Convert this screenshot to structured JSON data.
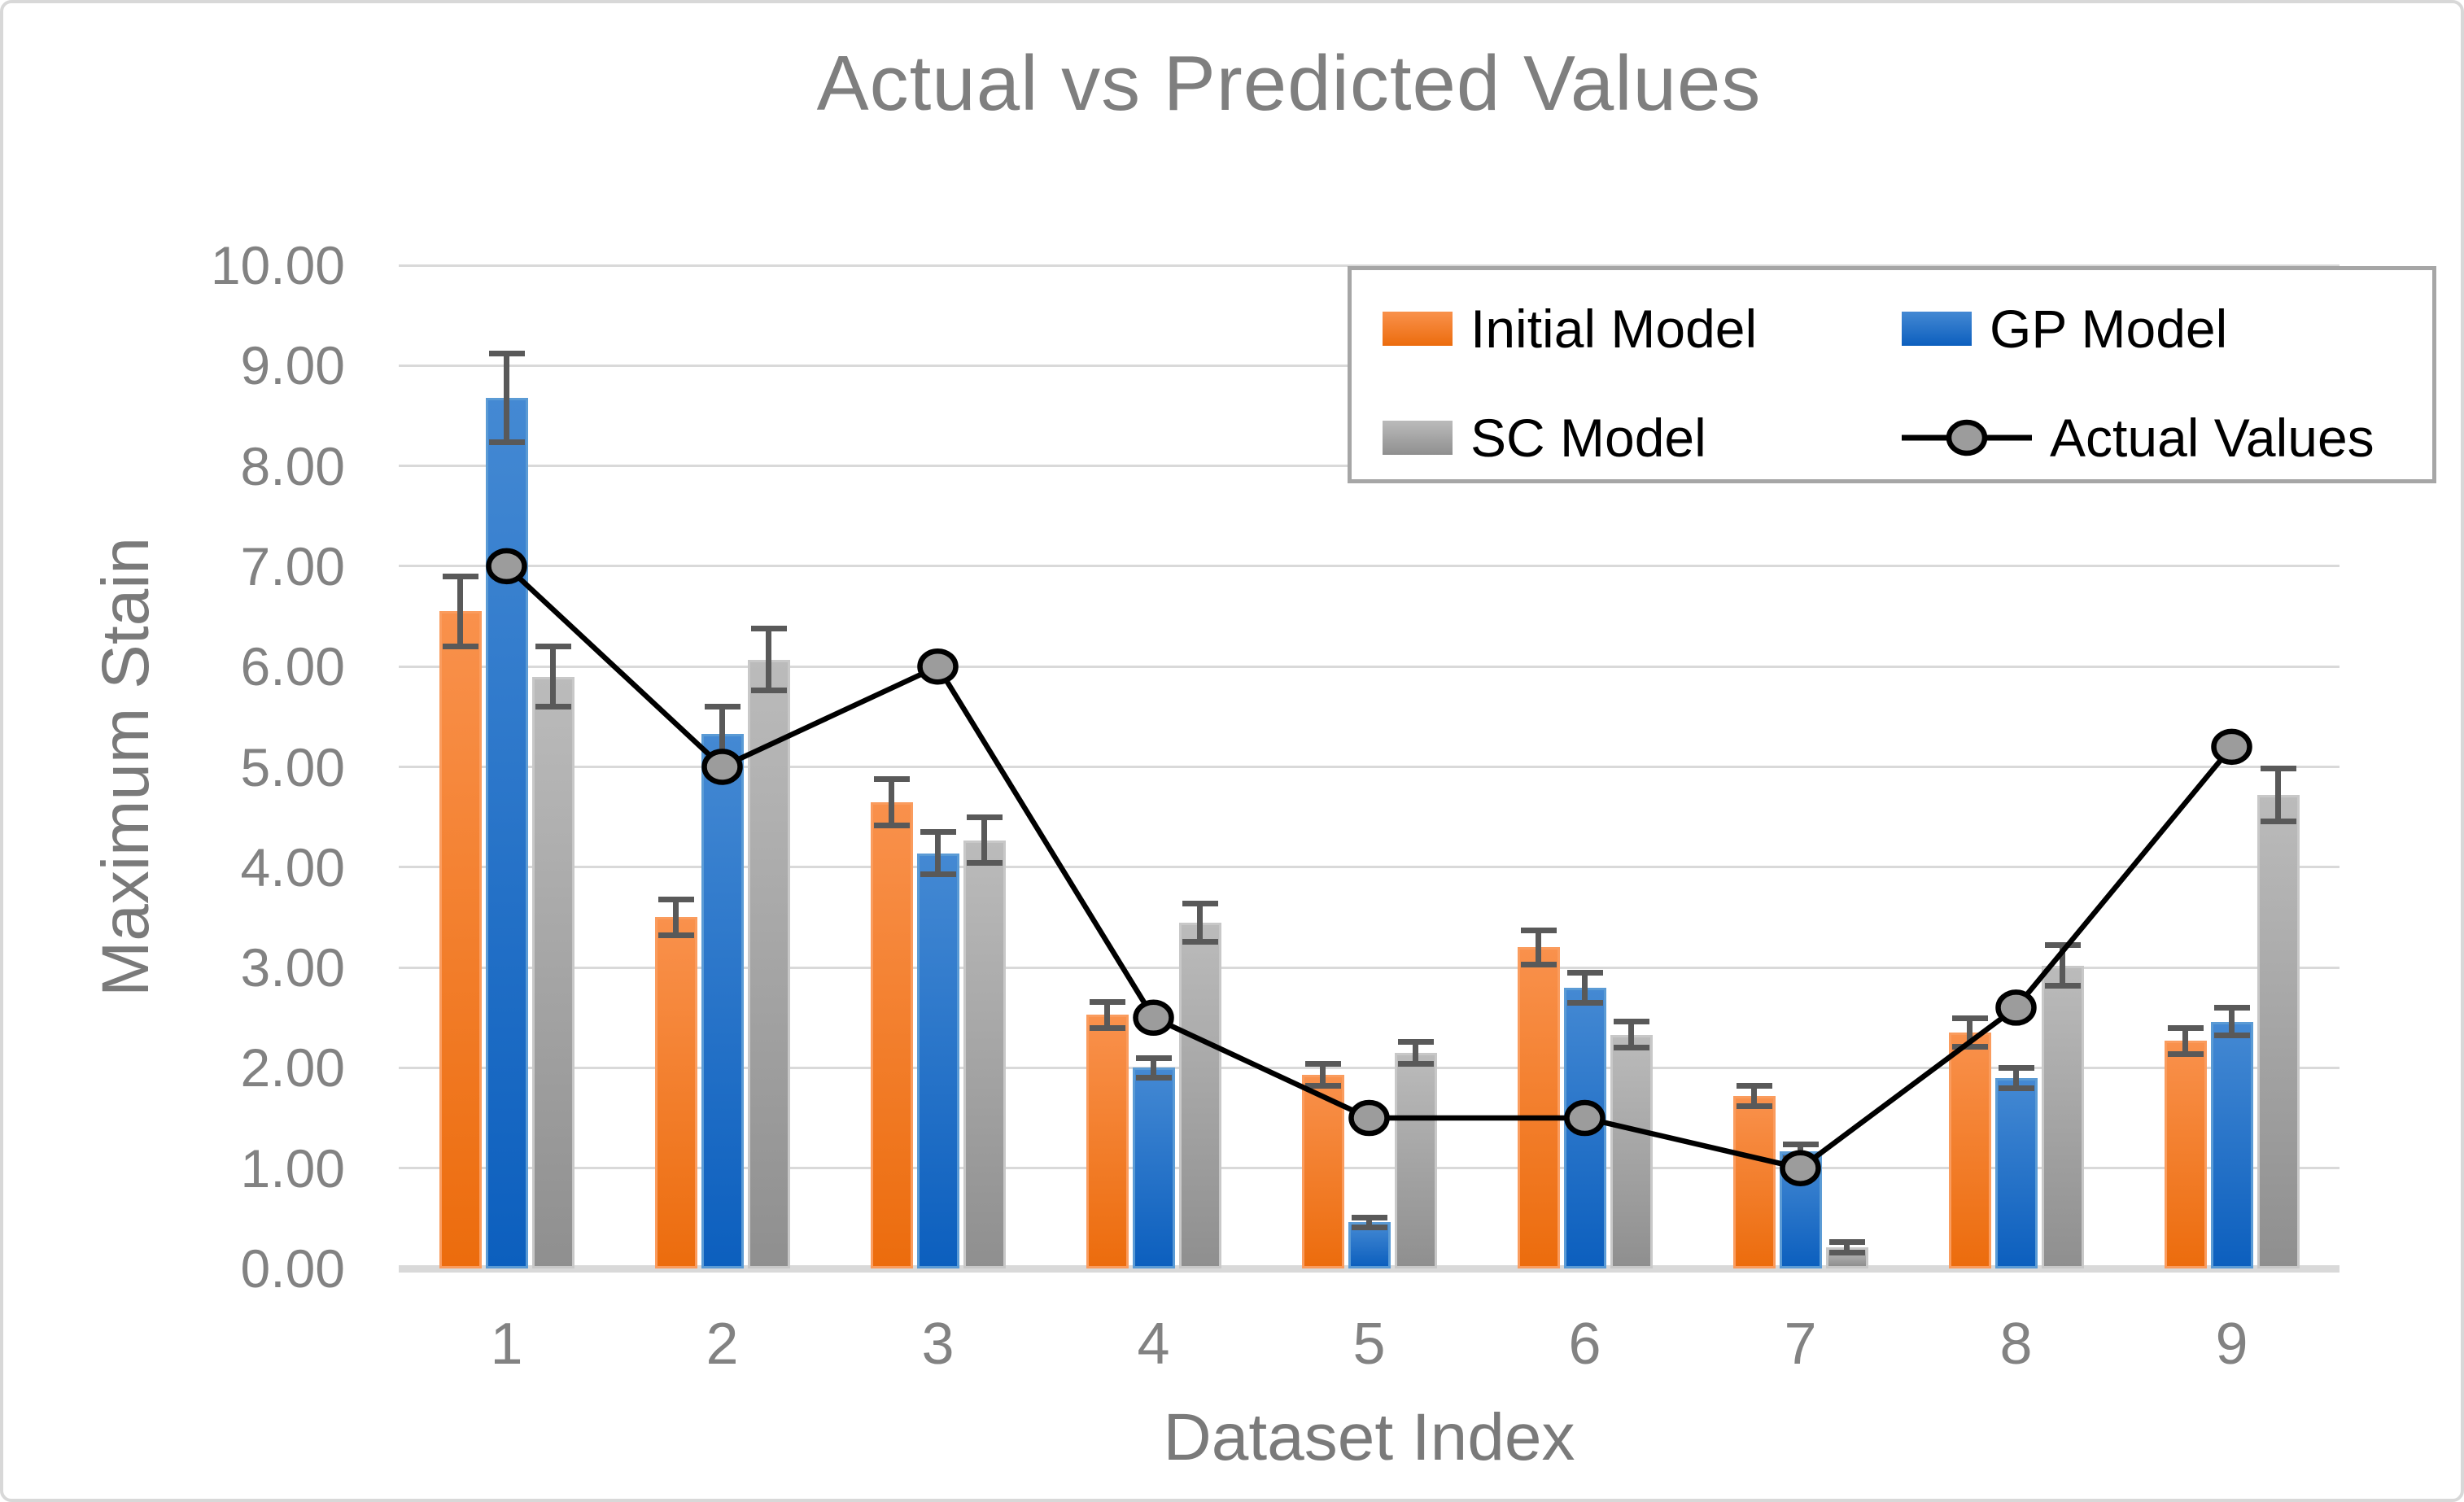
{
  "title": "Actual vs Predicted Values",
  "chart_data": {
    "type": "bar",
    "subtype": "grouped-bars-with-line-overlay",
    "title": "Actual vs Predicted Values",
    "xlabel": "Dataset Index",
    "ylabel": "Maximum Stain",
    "ylim": [
      0,
      10
    ],
    "grid": true,
    "legend_position": "top-right-inside",
    "categories": [
      "1",
      "2",
      "3",
      "4",
      "5",
      "6",
      "7",
      "8",
      "9"
    ],
    "y_ticks": [
      "10.00",
      "9.00",
      "8.00",
      "7.00",
      "6.00",
      "5.00",
      "4.00",
      "3.00",
      "2.00",
      "1.00",
      "0.00"
    ],
    "series": [
      {
        "name": "Initial Model",
        "type": "bar",
        "color": "#ED7D31",
        "gradient_top": "#F9914C",
        "gradient_bottom": "#EC6C0D",
        "border_color": "#FA9C5E",
        "values": [
          6.55,
          3.5,
          4.65,
          2.53,
          1.93,
          3.2,
          1.72,
          2.35,
          2.27
        ],
        "errors": [
          0.35,
          0.18,
          0.23,
          0.13,
          0.11,
          0.17,
          0.1,
          0.14,
          0.13
        ]
      },
      {
        "name": "GP Model",
        "type": "bar",
        "color": "#1F6FC4",
        "gradient_top": "#4489D3",
        "gradient_bottom": "#0C5FBE",
        "border_color": "#5B9BD5",
        "values": [
          8.68,
          5.33,
          4.14,
          2.0,
          0.46,
          2.8,
          1.17,
          1.9,
          2.46
        ],
        "errors": [
          0.44,
          0.27,
          0.21,
          0.1,
          0.05,
          0.15,
          0.07,
          0.1,
          0.14
        ]
      },
      {
        "name": "SC Model",
        "type": "bar",
        "color": "#A5A5A5",
        "gradient_top": "#BBBBBB",
        "gradient_bottom": "#8F8F8F",
        "border_color": "#C8C8C8",
        "values": [
          5.9,
          6.07,
          4.27,
          3.45,
          2.15,
          2.33,
          0.21,
          3.02,
          4.72
        ],
        "errors": [
          0.3,
          0.31,
          0.23,
          0.19,
          0.11,
          0.13,
          0.05,
          0.2,
          0.26
        ]
      },
      {
        "name": "Actual Values",
        "type": "line",
        "color": "#000000",
        "marker_fill": "#9C9C9C",
        "marker_border": "#000000",
        "values": [
          7.0,
          5.0,
          6.0,
          2.5,
          1.5,
          1.5,
          1.0,
          2.6,
          5.2
        ]
      }
    ],
    "error_bar_color": "#595959",
    "gridline_color": "#D9D9D9"
  }
}
